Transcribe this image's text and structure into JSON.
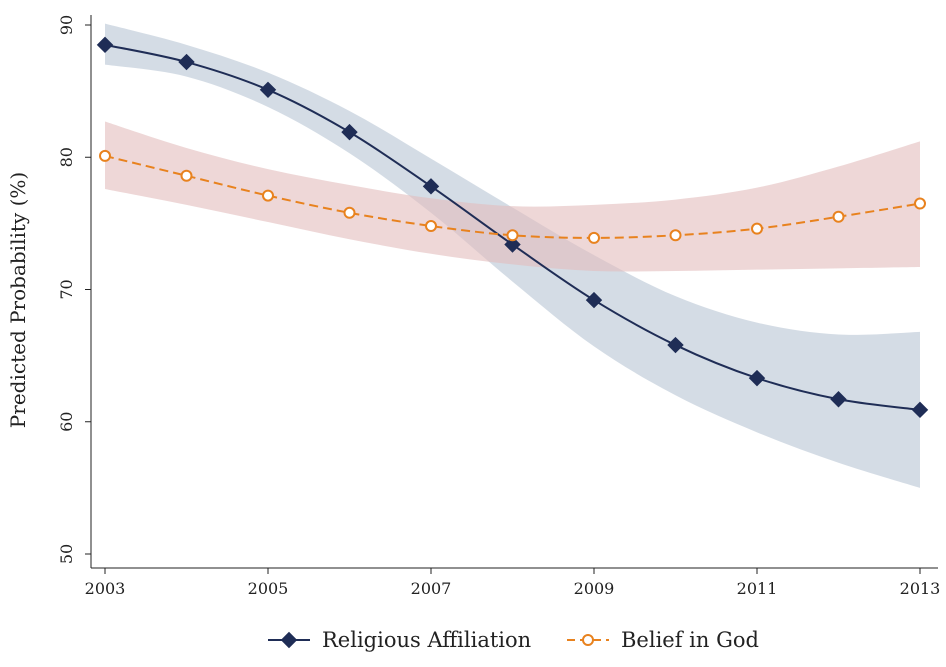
{
  "chart_data": {
    "type": "line",
    "title": "",
    "xlabel": "",
    "ylabel": "Predicted Probability (%)",
    "xlim": [
      2003,
      2013
    ],
    "ylim": [
      50,
      90
    ],
    "x_ticks": [
      "2003",
      "2005",
      "2007",
      "2009",
      "2011",
      "2013"
    ],
    "y_ticks": [
      "50",
      "60",
      "70",
      "80",
      "90"
    ],
    "x": [
      2003,
      2004,
      2005,
      2006,
      2007,
      2008,
      2009,
      2010,
      2011,
      2012,
      2013
    ],
    "series": [
      {
        "name": "Religious Affiliation",
        "color": "#1f2d56",
        "band_color": "#b8c4d4",
        "marker": "diamond",
        "line_style": "solid",
        "values": [
          88.5,
          87.2,
          85.1,
          81.9,
          77.8,
          73.4,
          69.2,
          65.8,
          63.3,
          61.7,
          60.9
        ],
        "ci_lower": [
          87.0,
          86.1,
          83.8,
          80.3,
          75.8,
          70.6,
          65.7,
          62.0,
          59.2,
          56.9,
          55.0
        ],
        "ci_upper": [
          90.1,
          88.5,
          86.4,
          83.5,
          79.9,
          76.2,
          72.6,
          69.5,
          67.5,
          66.6,
          66.8
        ]
      },
      {
        "name": "Belief in God",
        "color": "#e8821e",
        "band_color": "#e3bcbc",
        "marker": "hollow-circle",
        "line_style": "dashed",
        "values": [
          80.1,
          78.6,
          77.1,
          75.8,
          74.8,
          74.1,
          73.9,
          74.1,
          74.6,
          75.5,
          76.5
        ],
        "ci_lower": [
          77.6,
          76.4,
          75.1,
          73.8,
          72.7,
          71.9,
          71.4,
          71.4,
          71.5,
          71.6,
          71.7
        ],
        "ci_upper": [
          82.7,
          80.7,
          79.1,
          77.9,
          76.9,
          76.3,
          76.4,
          76.8,
          77.7,
          79.3,
          81.2
        ]
      }
    ],
    "legend": {
      "position": "bottom",
      "items": [
        "Religious Affiliation",
        "Belief in God"
      ]
    },
    "grid": false
  }
}
